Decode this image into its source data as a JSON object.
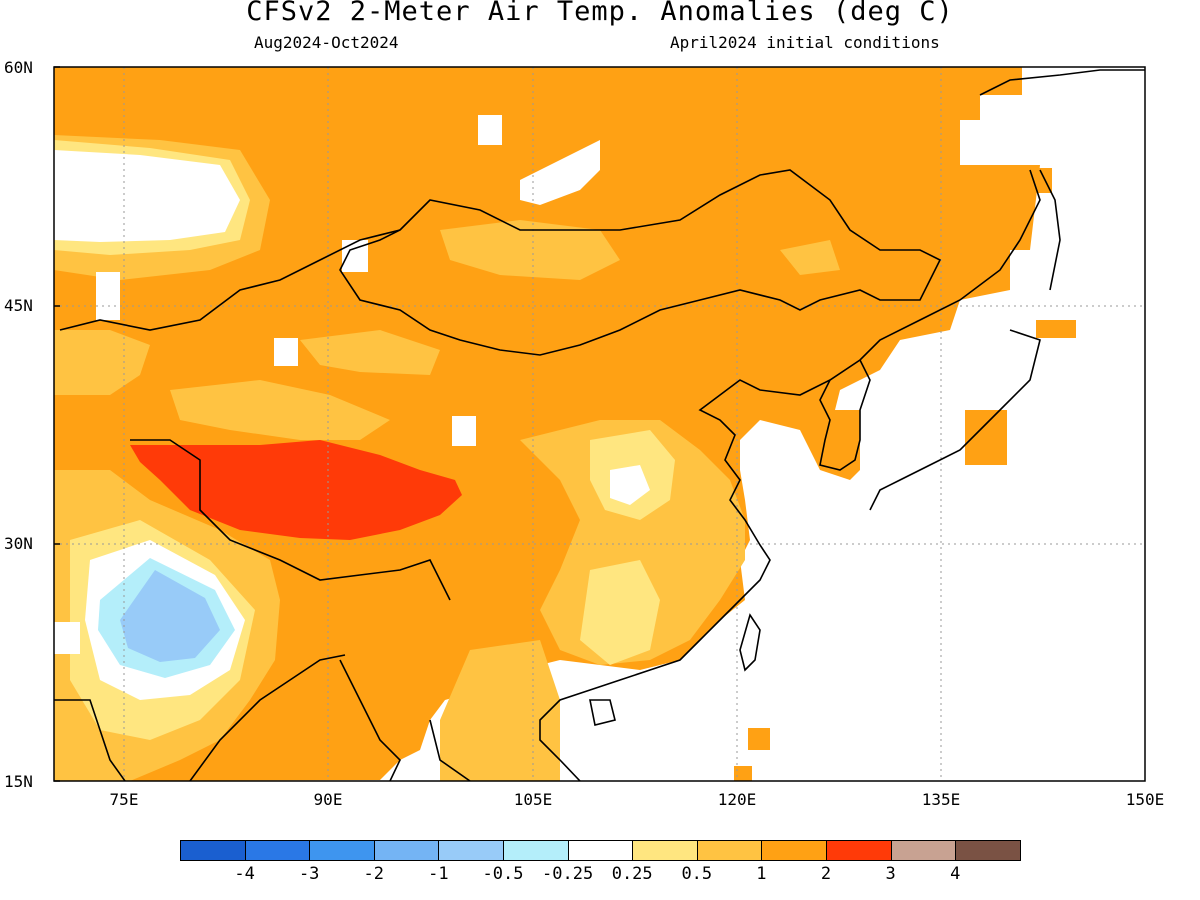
{
  "title": "CFSv2 2-Meter Air Temp. Anomalies (deg C)",
  "subtitle_left": "Aug2024-Oct2024",
  "subtitle_right": "April2024 initial conditions",
  "lat_labels": [
    "60N",
    "45N",
    "30N",
    "15N"
  ],
  "lon_labels": [
    "75E",
    "90E",
    "105E",
    "120E",
    "135E",
    "150E"
  ],
  "colorbar": {
    "colors": [
      "#1a5fd0",
      "#2a78e6",
      "#3e95ef",
      "#74b4f4",
      "#98cbf8",
      "#b4eefa",
      "#ffffff",
      "#ffe680",
      "#ffc342",
      "#ffa114",
      "#ff3a08",
      "#c8a292",
      "#7a5244"
    ],
    "labels": [
      "-4",
      "-3",
      "-2",
      "-1",
      "-0.5",
      "-0.25",
      "0.25",
      "0.5",
      "1",
      "2",
      "3",
      "4"
    ]
  },
  "map_colors": {
    "c_neg1": "#98cbf8",
    "c_neg05": "#b4eefa",
    "c_025": "#ffe680",
    "c_05": "#ffc342",
    "c_1": "#ffa114",
    "c_2": "#ff3a08"
  }
}
